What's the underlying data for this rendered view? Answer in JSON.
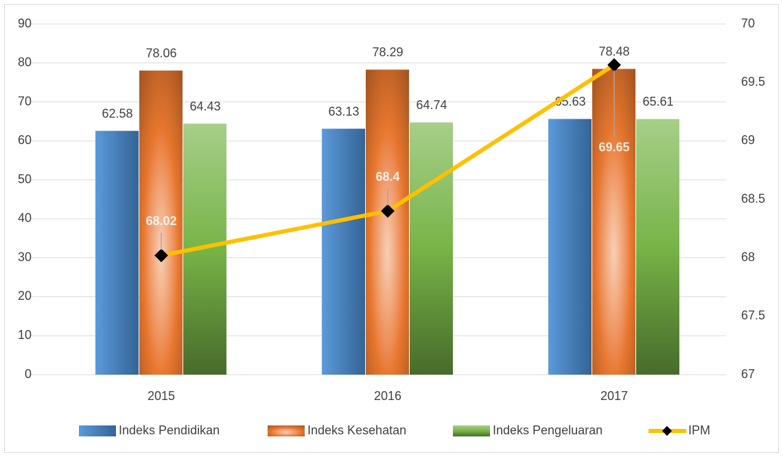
{
  "chart_data": {
    "type": "bar-line",
    "categories": [
      "2015",
      "2016",
      "2017"
    ],
    "series": [
      {
        "name": "Indeks Pendidikan",
        "color": "#4a8fd6",
        "values": [
          62.58,
          63.13,
          65.63
        ]
      },
      {
        "name": "Indeks Kesehatan",
        "color": "#e8772e",
        "values": [
          78.06,
          78.29,
          78.48
        ]
      },
      {
        "name": "Indeks Pengeluaran",
        "color": "#77b447",
        "values": [
          64.43,
          64.74,
          65.61
        ]
      },
      {
        "name": "IPM",
        "color": "#ffc000",
        "axis": "y2",
        "values": [
          68.02,
          68.4,
          69.65
        ]
      }
    ],
    "ylim": [
      0,
      90
    ],
    "yticks": [
      0,
      10,
      20,
      30,
      40,
      50,
      60,
      70,
      80,
      90
    ],
    "y2lim": [
      67,
      70
    ],
    "y2ticks": [
      67,
      67.5,
      68,
      68.5,
      69,
      69.5,
      70
    ],
    "grid": true,
    "legend": "bottom"
  }
}
